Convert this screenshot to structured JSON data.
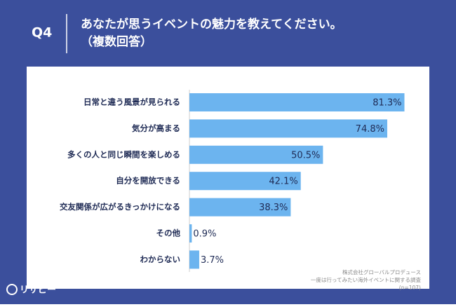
{
  "chart_data": {
    "type": "bar",
    "orientation": "horizontal",
    "header": "Q4",
    "title": "あなたが思うイベントの魅力を教えてください。",
    "subtitle": "（複数回答）",
    "categories": [
      "日常と違う風景が見られる",
      "気分が高まる",
      "多くの人と同じ瞬間を楽しめる",
      "自分を開放できる",
      "交友関係が広がるきっかけになる",
      "その他",
      "わからない"
    ],
    "values": [
      81.3,
      74.8,
      50.5,
      42.1,
      38.3,
      0.9,
      3.7
    ],
    "value_labels": [
      "81.3%",
      "74.8%",
      "50.5%",
      "42.1%",
      "38.3%",
      "0.9%",
      "3.7%"
    ],
    "color": "#6cb4ef",
    "source": [
      "株式会社グローバルプロデュース",
      "一度は行ってみたい海外イベントに関する調査",
      "(n=107)"
    ],
    "logo": "リサピー"
  }
}
